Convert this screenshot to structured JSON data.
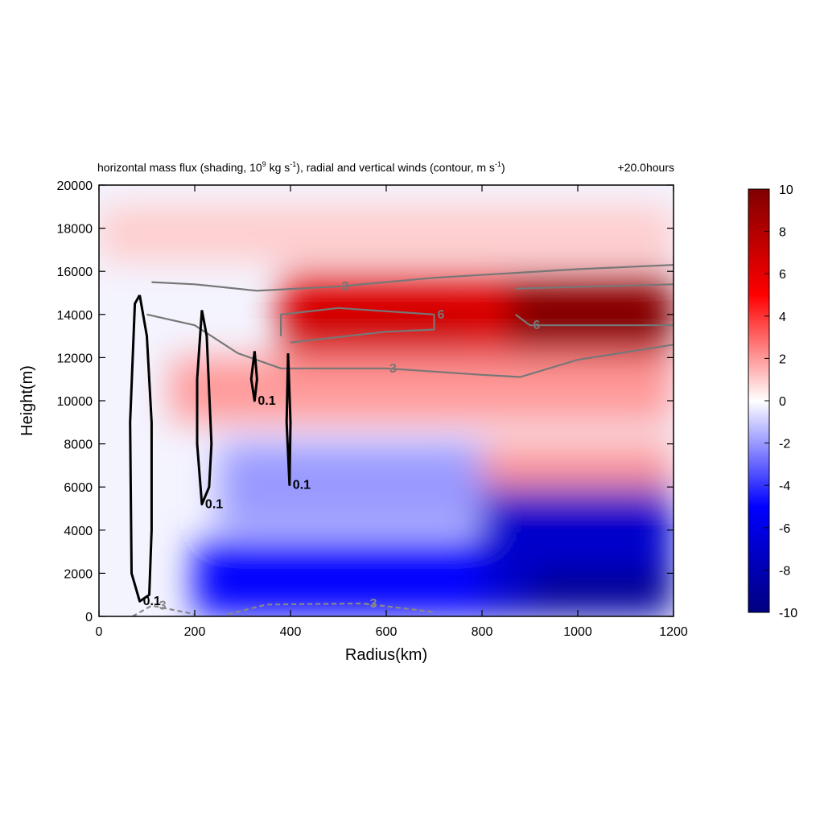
{
  "chart_data": {
    "type": "heatmap",
    "title_left": "horizontal mass flux (shading, 10",
    "title_left_sup1": "9",
    "title_left_mid": " kg s",
    "title_left_sup2": "-1",
    "title_left_mid2": "), radial and vertical winds (contour, m s",
    "title_left_sup3": "-1",
    "title_left_end": ")",
    "title_right": "+20.0hours",
    "xlabel": "Radius(km)",
    "ylabel": "Height(m)",
    "xlim": [
      0,
      1200
    ],
    "ylim": [
      0,
      20000
    ],
    "xticks": [
      "0",
      "200",
      "400",
      "600",
      "800",
      "1000",
      "1200"
    ],
    "yticks": [
      "0",
      "2000",
      "4000",
      "6000",
      "8000",
      "10000",
      "12000",
      "14000",
      "16000",
      "18000",
      "20000"
    ],
    "colorbar": {
      "range": [
        -10,
        10
      ],
      "ticks": [
        "10",
        "8",
        "6",
        "4",
        "2",
        "0",
        "-2",
        "-4",
        "-6",
        "-8",
        "-10"
      ],
      "colors": [
        "#000080",
        "#0000ff",
        "#ffffff",
        "#ff0000",
        "#800000"
      ]
    },
    "field_regions": [
      {
        "x": [
          380,
          1200
        ],
        "y": [
          11500,
          16000
        ],
        "value": 6
      },
      {
        "x": [
          850,
          1200
        ],
        "y": [
          12500,
          15500
        ],
        "value": 10
      },
      {
        "x": [
          380,
          800
        ],
        "y": [
          12500,
          14500
        ],
        "value": 7
      },
      {
        "x": [
          150,
          1200
        ],
        "y": [
          9000,
          12000
        ],
        "value": 2
      },
      {
        "x": [
          700,
          1200
        ],
        "y": [
          5500,
          8000
        ],
        "value": 2
      },
      {
        "x": [
          0,
          1200
        ],
        "y": [
          16500,
          19000
        ],
        "value": 1
      },
      {
        "x": [
          200,
          1200
        ],
        "y": [
          0,
          3500
        ],
        "value": -5
      },
      {
        "x": [
          800,
          1200
        ],
        "y": [
          0,
          6000
        ],
        "value": -7
      },
      {
        "x": [
          900,
          1200
        ],
        "y": [
          500,
          2000
        ],
        "value": -10
      },
      {
        "x": [
          250,
          800
        ],
        "y": [
          4000,
          8000
        ],
        "value": -2
      }
    ],
    "contours": [
      {
        "level": "3",
        "color": "#777777",
        "dashed": false,
        "points": [
          [
            110,
            15500
          ],
          [
            200,
            15400
          ],
          [
            330,
            15100
          ],
          [
            500,
            15300
          ],
          [
            700,
            15700
          ],
          [
            1000,
            16100
          ],
          [
            1200,
            16300
          ]
        ]
      },
      {
        "level": "3",
        "color": "#777777",
        "dashed": false,
        "points": [
          [
            100,
            14000
          ],
          [
            200,
            13500
          ],
          [
            290,
            12200
          ],
          [
            380,
            11500
          ],
          [
            600,
            11500
          ],
          [
            800,
            11200
          ],
          [
            880,
            11100
          ],
          [
            1000,
            11900
          ],
          [
            1200,
            12600
          ]
        ]
      },
      {
        "level": "6",
        "color": "#777777",
        "dashed": false,
        "points": [
          [
            380,
            13000
          ],
          [
            380,
            14000
          ],
          [
            500,
            14300
          ],
          [
            700,
            14000
          ],
          [
            700,
            13300
          ],
          [
            600,
            13200
          ],
          [
            400,
            12700
          ]
        ]
      },
      {
        "level": "6",
        "color": "#777777",
        "dashed": false,
        "points": [
          [
            870,
            15200
          ],
          [
            1200,
            15400
          ]
        ]
      },
      {
        "level": "6",
        "color": "#777777",
        "dashed": false,
        "points": [
          [
            870,
            14000
          ],
          [
            900,
            13500
          ],
          [
            1200,
            13500
          ]
        ]
      },
      {
        "level": "0.1",
        "color": "#000000",
        "dashed": false,
        "points": [
          [
            85,
            14900
          ],
          [
            100,
            13000
          ],
          [
            110,
            9000
          ],
          [
            110,
            4000
          ],
          [
            105,
            1000
          ],
          [
            85,
            700
          ],
          [
            68,
            2000
          ],
          [
            65,
            9000
          ],
          [
            75,
            14500
          ],
          [
            85,
            14900
          ]
        ]
      },
      {
        "level": "0.1",
        "color": "#000000",
        "dashed": false,
        "points": [
          [
            215,
            14200
          ],
          [
            225,
            13000
          ],
          [
            235,
            8000
          ],
          [
            230,
            6000
          ],
          [
            215,
            5200
          ],
          [
            205,
            8000
          ],
          [
            205,
            11000
          ],
          [
            215,
            14200
          ]
        ]
      },
      {
        "level": "0.1",
        "color": "#000000",
        "dashed": false,
        "points": [
          [
            395,
            12200
          ],
          [
            400,
            9000
          ],
          [
            398,
            6100
          ],
          [
            392,
            9000
          ],
          [
            395,
            12200
          ]
        ]
      },
      {
        "level": "0.1",
        "color": "#000000",
        "dashed": false,
        "points": [
          [
            325,
            12300
          ],
          [
            330,
            11000
          ],
          [
            325,
            10000
          ],
          [
            318,
            11000
          ],
          [
            325,
            12300
          ]
        ]
      },
      {
        "level": "-3",
        "color": "#888888",
        "dashed": true,
        "points": [
          [
            270,
            100
          ],
          [
            350,
            550
          ],
          [
            550,
            600
          ],
          [
            700,
            200
          ]
        ]
      },
      {
        "level": "-3",
        "color": "#888888",
        "dashed": true,
        "points": [
          [
            70,
            0
          ],
          [
            110,
            500
          ],
          [
            200,
            100
          ]
        ]
      }
    ]
  }
}
